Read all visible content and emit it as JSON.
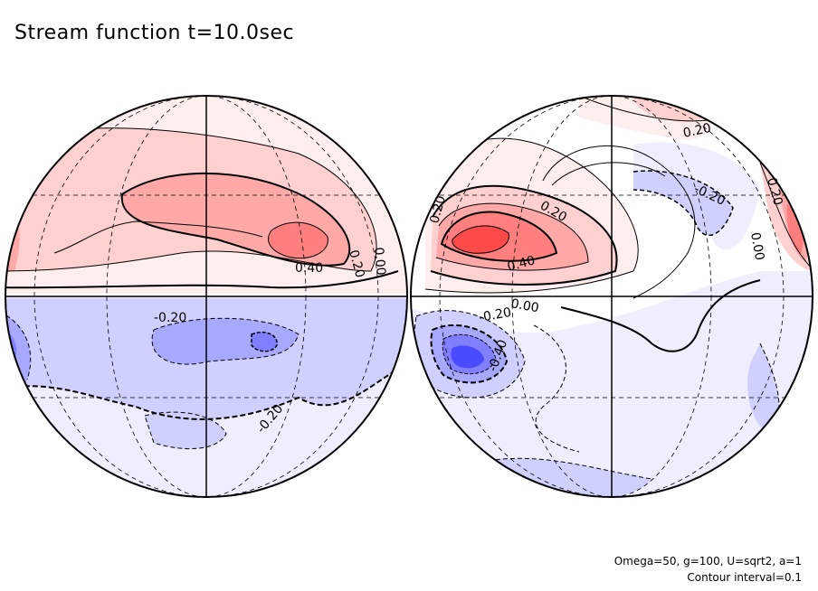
{
  "title": "Stream function t=10.0sec",
  "footer": {
    "params": "Omega=50, g=100, U=sqrt2, a=1",
    "contour": "Contour interval=0.1"
  },
  "chart_data": {
    "type": "heatmap",
    "projection": "orthographic (two hemispheres side by side)",
    "contour_interval": 0.1,
    "colors": {
      "positive_scale": [
        "#ffeeee",
        "#ffd0d0",
        "#ffa8a8",
        "#ff7f7f",
        "#ff4a4a"
      ],
      "negative_scale": [
        "#eeeeff",
        "#d0d0ff",
        "#a8a8ff",
        "#7f7fff",
        "#4a4aff"
      ],
      "positive_contour": "solid",
      "negative_contour": "dashed"
    },
    "hemispheres": [
      {
        "contour_labels": [
          "0.20",
          "0.00",
          "0.40",
          "-0.20",
          "-0.20"
        ],
        "max_value_approx": 0.5,
        "min_value_approx": -0.3
      },
      {
        "contour_labels": [
          "0.20",
          "0.20",
          "0.20",
          "0.40",
          "0.00",
          "-0.20",
          "-0.20",
          "0.20",
          "0.00",
          "-0.40"
        ],
        "max_value_approx": 0.6,
        "min_value_approx": -0.6
      }
    ]
  }
}
